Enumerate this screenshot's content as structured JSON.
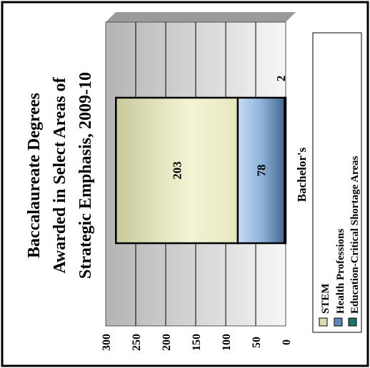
{
  "chart_data": {
    "type": "bar",
    "stacked": true,
    "orientation": "rotated-ccw",
    "title": "Baccalaureate Degrees Awarded in Select Areas of Strategic Emphasis, 2009-10",
    "title_lines": [
      "Baccalaureate Degrees",
      "Awarded in Select Areas of",
      "Strategic Emphasis, 2009-10"
    ],
    "categories": [
      "Bachelor's"
    ],
    "series": [
      {
        "name": "STEM",
        "values": [
          203
        ],
        "color": "#dcdcb2"
      },
      {
        "name": "Health Professions",
        "values": [
          78
        ],
        "color": "#5f88b6"
      },
      {
        "name": "Education-Critical Shortage Areas",
        "values": [
          2
        ],
        "color": "#1f6f6a"
      }
    ],
    "data_labels": [
      "203",
      "78",
      "2"
    ],
    "ylim": [
      0,
      300
    ],
    "yticks": [
      "0",
      "50",
      "100",
      "150",
      "200",
      "250",
      "300"
    ],
    "grid": true,
    "legend_position": "right",
    "colors": {
      "plot_background": "#d7d7d7",
      "border": "#000000",
      "gridline": "#000000"
    }
  }
}
